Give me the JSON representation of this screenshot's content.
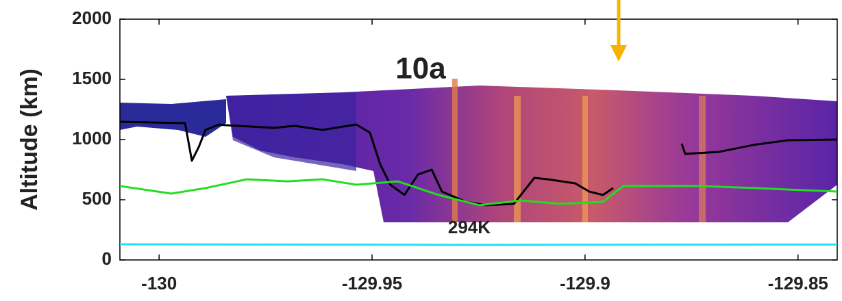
{
  "chart_data": {
    "type": "line",
    "y_label": "Altitude (km)",
    "annotations": [
      "10a",
      "294K"
    ],
    "xlim": [
      -130.0092,
      -129.8408
    ],
    "xticks": [
      -130,
      -129.95,
      -129.9,
      -129.85
    ],
    "ylim": [
      0,
      2000
    ],
    "yticks": [
      0,
      500,
      1000,
      1500,
      2000
    ],
    "series": [
      {
        "color": "#000000",
        "x": [
          -130.0092,
          -129.9939,
          -129.9923,
          -129.9907,
          -129.9891,
          -129.9859,
          -129.9843,
          -129.973,
          -129.9682,
          -129.9617,
          -129.9537,
          -129.9505,
          -129.9481,
          -129.9457,
          -129.9424,
          -129.9392,
          -129.936,
          -129.9336,
          -129.928,
          -129.9232,
          -129.9167,
          -129.9119,
          -129.9087,
          -129.9023,
          -129.899,
          -129.8958,
          -129.8934,
          null,
          -129.8773,
          -129.8765,
          -129.8685,
          -129.8605,
          -129.8524,
          -129.8408
        ],
        "values": [
          1148,
          1136,
          824,
          937,
          1080,
          1125,
          1119,
          1097,
          1114,
          1080,
          1125,
          1057,
          795,
          625,
          540,
          710,
          750,
          568,
          483,
          455,
          466,
          682,
          670,
          636,
          568,
          540,
          597,
          null,
          966,
          881,
          898,
          955,
          994,
          1000
        ]
      },
      {
        "color": "#22dd22",
        "x": [
          -130.0092,
          -129.9971,
          -129.9891,
          -129.9794,
          -129.9698,
          -129.9617,
          -129.9537,
          -129.944,
          -129.9344,
          -129.9248,
          -129.9151,
          -129.9055,
          -129.8958,
          -129.891,
          -129.883,
          -129.8733,
          -129.8605,
          -129.8408
        ],
        "values": [
          614,
          551,
          597,
          670,
          653,
          670,
          625,
          653,
          540,
          455,
          494,
          466,
          483,
          614,
          614,
          614,
          597,
          568
        ]
      },
      {
        "color": "#22e0f0",
        "x": [
          -130.0092,
          -129.925,
          -129.8408
        ],
        "values": [
          130,
          125,
          128
        ]
      }
    ]
  }
}
